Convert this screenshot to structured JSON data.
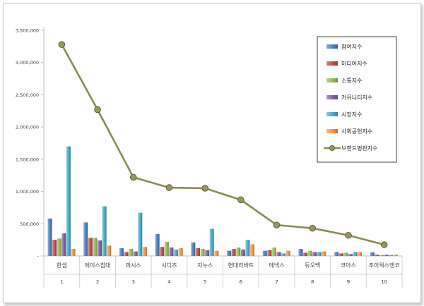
{
  "chart_data": {
    "type": "bar",
    "categories": [
      "한샘",
      "에이스침대",
      "퍼시스",
      "시디즈",
      "지누스",
      "현대리바트",
      "에넥스",
      "듀오백",
      "코아스",
      "조이웍스앤코"
    ],
    "ranks": [
      "1",
      "2",
      "3",
      "4",
      "5",
      "6",
      "7",
      "8",
      "9",
      "10"
    ],
    "y_ticks": [
      "-",
      "500,000",
      "1,000,000",
      "1,500,000",
      "2,000,000",
      "2,500,000",
      "3,000,000",
      "3,500,000"
    ],
    "ylim": [
      0,
      3500000
    ],
    "grid": false,
    "legend_position": "top-right",
    "series": [
      {
        "name": "참여지수",
        "type": "bar",
        "color": "#4f81bd",
        "values": [
          580000,
          520000,
          120000,
          340000,
          210000,
          80000,
          80000,
          110000,
          60000,
          55000
        ]
      },
      {
        "name": "미디어지수",
        "type": "bar",
        "color": "#c0504d",
        "values": [
          250000,
          280000,
          60000,
          140000,
          120000,
          110000,
          90000,
          50000,
          40000,
          20000
        ]
      },
      {
        "name": "소통지수",
        "type": "bar",
        "color": "#9bbb59",
        "values": [
          270000,
          280000,
          110000,
          220000,
          110000,
          130000,
          130000,
          80000,
          50000,
          15000
        ]
      },
      {
        "name": "커뮤니티지수",
        "type": "bar",
        "color": "#8064a2",
        "values": [
          350000,
          240000,
          70000,
          130000,
          90000,
          100000,
          60000,
          60000,
          30000,
          20000
        ]
      },
      {
        "name": "시장지수",
        "type": "bar",
        "color": "#4bacc6",
        "values": [
          1700000,
          770000,
          670000,
          100000,
          420000,
          250000,
          40000,
          60000,
          60000,
          15000
        ]
      },
      {
        "name": "사회공헌지수",
        "type": "bar",
        "color": "#f79646",
        "values": [
          110000,
          160000,
          140000,
          120000,
          80000,
          180000,
          80000,
          70000,
          60000,
          20000
        ]
      },
      {
        "name": "브랜드평판지수",
        "type": "line",
        "color": "#8b8a50",
        "values": [
          3280000,
          2270000,
          1220000,
          1060000,
          1050000,
          870000,
          480000,
          430000,
          320000,
          175000
        ]
      }
    ]
  }
}
